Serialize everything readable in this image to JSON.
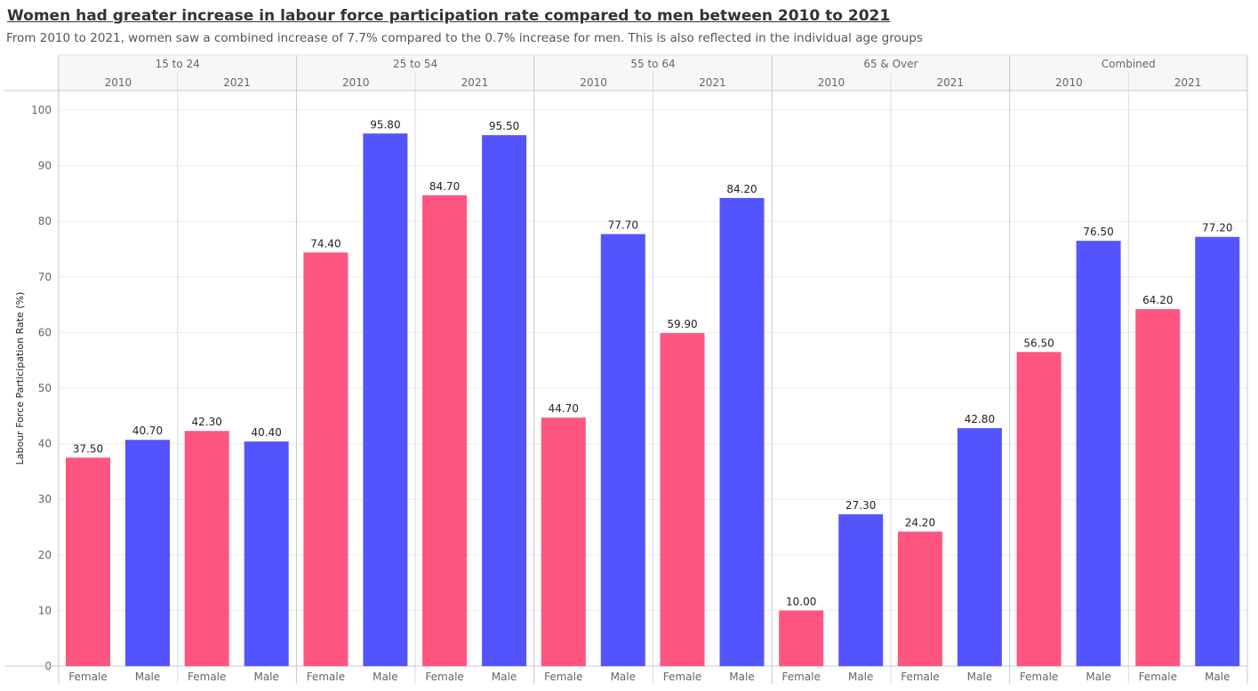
{
  "title": "Women had greater increase in labour force participation rate compared to men between 2010 to 2021",
  "subtitle": "From 2010 to 2021, women saw a combined increase of 7.7% compared to the 0.7% increase for men. This is also reflected in the individual age groups",
  "chart_data": {
    "type": "bar",
    "ylabel": "Labour Force Participation Rate (%)",
    "ylim": [
      0,
      100
    ],
    "yticks": [
      0,
      10,
      20,
      30,
      40,
      50,
      60,
      70,
      80,
      90,
      100
    ],
    "grid": true,
    "colors": {
      "Female": "#ff5581",
      "Male": "#5454ff"
    },
    "groups": [
      {
        "label": "15 to 24",
        "years": [
          {
            "label": "2010",
            "bars": [
              {
                "category": "Female",
                "value": 37.5,
                "text": "37.50"
              },
              {
                "category": "Male",
                "value": 40.7,
                "text": "40.70"
              }
            ]
          },
          {
            "label": "2021",
            "bars": [
              {
                "category": "Female",
                "value": 42.3,
                "text": "42.30"
              },
              {
                "category": "Male",
                "value": 40.4,
                "text": "40.40"
              }
            ]
          }
        ]
      },
      {
        "label": "25 to 54",
        "years": [
          {
            "label": "2010",
            "bars": [
              {
                "category": "Female",
                "value": 74.4,
                "text": "74.40"
              },
              {
                "category": "Male",
                "value": 95.8,
                "text": "95.80"
              }
            ]
          },
          {
            "label": "2021",
            "bars": [
              {
                "category": "Female",
                "value": 84.7,
                "text": "84.70"
              },
              {
                "category": "Male",
                "value": 95.5,
                "text": "95.50"
              }
            ]
          }
        ]
      },
      {
        "label": "55 to 64",
        "years": [
          {
            "label": "2010",
            "bars": [
              {
                "category": "Female",
                "value": 44.7,
                "text": "44.70"
              },
              {
                "category": "Male",
                "value": 77.7,
                "text": "77.70"
              }
            ]
          },
          {
            "label": "2021",
            "bars": [
              {
                "category": "Female",
                "value": 59.9,
                "text": "59.90"
              },
              {
                "category": "Male",
                "value": 84.2,
                "text": "84.20"
              }
            ]
          }
        ]
      },
      {
        "label": "65 & Over",
        "years": [
          {
            "label": "2010",
            "bars": [
              {
                "category": "Female",
                "value": 10.0,
                "text": "10.00"
              },
              {
                "category": "Male",
                "value": 27.3,
                "text": "27.30"
              }
            ]
          },
          {
            "label": "2021",
            "bars": [
              {
                "category": "Female",
                "value": 24.2,
                "text": "24.20"
              },
              {
                "category": "Male",
                "value": 42.8,
                "text": "42.80"
              }
            ]
          }
        ]
      },
      {
        "label": "Combined",
        "years": [
          {
            "label": "2010",
            "bars": [
              {
                "category": "Female",
                "value": 56.5,
                "text": "56.50"
              },
              {
                "category": "Male",
                "value": 76.5,
                "text": "76.50"
              }
            ]
          },
          {
            "label": "2021",
            "bars": [
              {
                "category": "Female",
                "value": 64.2,
                "text": "64.20"
              },
              {
                "category": "Male",
                "value": 77.2,
                "text": "77.20"
              }
            ]
          }
        ]
      }
    ]
  }
}
